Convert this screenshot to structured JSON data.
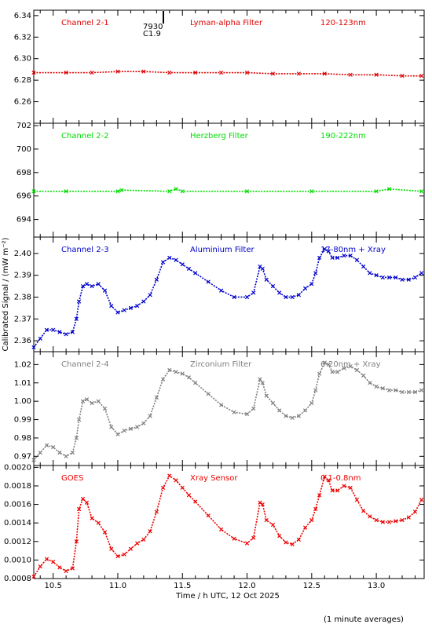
{
  "footer": {
    "xlabel": "Time / h UTC, 12 Oct 2025",
    "ylabel": "Calibrated Signal / (mW m⁻²)",
    "note": "(1 minute averages)"
  },
  "flare_marker": {
    "id": "7930",
    "class": "C1.9",
    "time": 11.36
  },
  "colors": {
    "red": "#dd0000",
    "green": "#00dd00",
    "blue": "#0000cc",
    "gray": "#808080",
    "goes_red": "#ee0000"
  },
  "chart_data": [
    {
      "type": "scatter",
      "panel": "channel-2-1",
      "labels": [
        "Channel 2-1",
        "Lyman-alpha Filter",
        "120-123nm"
      ],
      "color": "#dd0000",
      "ylim": [
        6.24,
        6.345
      ],
      "yticks": [
        6.26,
        6.28,
        6.3,
        6.32,
        6.34
      ],
      "ytick_labels": [
        "6.26",
        "6.28",
        "6.30",
        "6.32",
        "6.34"
      ],
      "x": [
        10.35,
        10.6,
        10.8,
        11.0,
        11.2,
        11.4,
        11.6,
        11.8,
        12.0,
        12.2,
        12.4,
        12.6,
        12.8,
        13.0,
        13.2,
        13.35
      ],
      "y": [
        6.287,
        6.287,
        6.287,
        6.288,
        6.288,
        6.287,
        6.287,
        6.287,
        6.287,
        6.286,
        6.286,
        6.286,
        6.285,
        6.285,
        6.284,
        6.284
      ]
    },
    {
      "type": "scatter",
      "panel": "channel-2-2",
      "labels": [
        "Channel 2-2",
        "Herzberg Filter",
        "190-222nm"
      ],
      "color": "#00dd00",
      "ylim": [
        692.5,
        702.2
      ],
      "yticks": [
        694,
        696,
        698,
        700,
        702
      ],
      "ytick_labels": [
        "694",
        "696",
        "698",
        "700",
        "702"
      ],
      "x": [
        10.35,
        10.6,
        11.0,
        11.03,
        11.4,
        11.45,
        11.5,
        12.0,
        12.5,
        13.0,
        13.1,
        13.35
      ],
      "y": [
        696.4,
        696.4,
        696.4,
        696.5,
        696.4,
        696.6,
        696.4,
        696.4,
        696.4,
        696.4,
        696.6,
        696.4
      ]
    },
    {
      "type": "scatter",
      "panel": "channel-2-3",
      "labels": [
        "Channel 2-3",
        "Aluminium Filter",
        "17-80nm + Xray"
      ],
      "color": "#0000cc",
      "ylim": [
        2.355,
        2.4075
      ],
      "yticks": [
        2.36,
        2.37,
        2.38,
        2.39,
        2.4
      ],
      "ytick_labels": [
        "2.36",
        "2.37",
        "2.38",
        "2.39",
        "2.40"
      ],
      "x": [
        10.35,
        10.4,
        10.45,
        10.5,
        10.55,
        10.6,
        10.65,
        10.68,
        10.7,
        10.73,
        10.76,
        10.8,
        10.85,
        10.9,
        10.95,
        11.0,
        11.05,
        11.1,
        11.15,
        11.2,
        11.25,
        11.3,
        11.35,
        11.4,
        11.45,
        11.5,
        11.55,
        11.6,
        11.7,
        11.8,
        11.9,
        12.0,
        12.05,
        12.1,
        12.12,
        12.15,
        12.2,
        12.25,
        12.3,
        12.35,
        12.4,
        12.45,
        12.5,
        12.53,
        12.56,
        12.6,
        12.63,
        12.66,
        12.7,
        12.75,
        12.8,
        12.85,
        12.9,
        12.95,
        13.0,
        13.05,
        13.1,
        13.15,
        13.2,
        13.25,
        13.3,
        13.35
      ],
      "y": [
        2.357,
        2.361,
        2.365,
        2.365,
        2.364,
        2.363,
        2.364,
        2.37,
        2.378,
        2.385,
        2.386,
        2.385,
        2.386,
        2.383,
        2.376,
        2.373,
        2.374,
        2.375,
        2.376,
        2.378,
        2.381,
        2.388,
        2.396,
        2.398,
        2.397,
        2.395,
        2.393,
        2.391,
        2.387,
        2.383,
        2.38,
        2.38,
        2.382,
        2.394,
        2.393,
        2.388,
        2.385,
        2.382,
        2.38,
        2.38,
        2.381,
        2.384,
        2.386,
        2.391,
        2.398,
        2.402,
        2.401,
        2.398,
        2.398,
        2.399,
        2.399,
        2.397,
        2.394,
        2.391,
        2.39,
        2.389,
        2.389,
        2.389,
        2.388,
        2.388,
        2.389,
        2.391
      ]
    },
    {
      "type": "scatter",
      "panel": "channel-2-4",
      "labels": [
        "Channel 2-4",
        "Zirconium Filter",
        "6-20nm + Xray"
      ],
      "color": "#808080",
      "ylim": [
        0.965,
        1.027
      ],
      "yticks": [
        0.97,
        0.98,
        0.99,
        1.0,
        1.01,
        1.02
      ],
      "ytick_labels": [
        "0.97",
        "0.98",
        "0.99",
        "1.00",
        "1.01",
        "1.02"
      ],
      "x": [
        10.35,
        10.4,
        10.45,
        10.5,
        10.55,
        10.6,
        10.65,
        10.68,
        10.7,
        10.73,
        10.76,
        10.8,
        10.85,
        10.9,
        10.95,
        11.0,
        11.05,
        11.1,
        11.15,
        11.2,
        11.25,
        11.3,
        11.35,
        11.4,
        11.45,
        11.5,
        11.55,
        11.6,
        11.7,
        11.8,
        11.9,
        12.0,
        12.05,
        12.1,
        12.12,
        12.15,
        12.2,
        12.25,
        12.3,
        12.35,
        12.4,
        12.45,
        12.5,
        12.53,
        12.56,
        12.6,
        12.63,
        12.66,
        12.7,
        12.75,
        12.8,
        12.85,
        12.9,
        12.95,
        13.0,
        13.05,
        13.1,
        13.15,
        13.2,
        13.25,
        13.3,
        13.35
      ],
      "y": [
        0.968,
        0.972,
        0.976,
        0.975,
        0.972,
        0.97,
        0.972,
        0.98,
        0.99,
        1.0,
        1.001,
        0.999,
        1.0,
        0.996,
        0.986,
        0.982,
        0.984,
        0.985,
        0.986,
        0.988,
        0.992,
        1.002,
        1.012,
        1.017,
        1.016,
        1.015,
        1.013,
        1.01,
        1.004,
        0.998,
        0.994,
        0.993,
        0.996,
        1.012,
        1.01,
        1.003,
        0.999,
        0.995,
        0.992,
        0.991,
        0.992,
        0.995,
        0.999,
        1.006,
        1.015,
        1.021,
        1.02,
        1.016,
        1.016,
        1.018,
        1.019,
        1.017,
        1.014,
        1.01,
        1.008,
        1.007,
        1.006,
        1.006,
        1.005,
        1.005,
        1.005,
        1.006
      ]
    },
    {
      "type": "scatter",
      "panel": "goes",
      "labels": [
        "GOES",
        "Xray Sensor",
        "0.1-0.8nm"
      ],
      "color": "#ee0000",
      "ylim": [
        0.0008,
        0.00202
      ],
      "yticks": [
        0.0008,
        0.001,
        0.0012,
        0.0014,
        0.0016,
        0.0018,
        0.002
      ],
      "ytick_labels": [
        "0.0008",
        "0.0010",
        "0.0012",
        "0.0014",
        "0.0016",
        "0.0018",
        "0.0020"
      ],
      "x": [
        10.35,
        10.4,
        10.45,
        10.5,
        10.55,
        10.6,
        10.65,
        10.68,
        10.7,
        10.73,
        10.76,
        10.8,
        10.85,
        10.9,
        10.95,
        11.0,
        11.05,
        11.1,
        11.15,
        11.2,
        11.25,
        11.3,
        11.35,
        11.4,
        11.45,
        11.5,
        11.55,
        11.6,
        11.7,
        11.8,
        11.9,
        12.0,
        12.05,
        12.1,
        12.12,
        12.15,
        12.2,
        12.25,
        12.3,
        12.35,
        12.4,
        12.45,
        12.5,
        12.53,
        12.56,
        12.6,
        12.63,
        12.66,
        12.7,
        12.75,
        12.8,
        12.85,
        12.9,
        12.95,
        13.0,
        13.05,
        13.1,
        13.15,
        13.2,
        13.25,
        13.3,
        13.35
      ],
      "y": [
        0.00082,
        0.00093,
        0.00101,
        0.00098,
        0.00092,
        0.00088,
        0.00091,
        0.0012,
        0.00155,
        0.00166,
        0.00162,
        0.00145,
        0.0014,
        0.0013,
        0.00112,
        0.00104,
        0.00106,
        0.00112,
        0.00118,
        0.00122,
        0.00131,
        0.00152,
        0.00178,
        0.00191,
        0.00186,
        0.00178,
        0.0017,
        0.00163,
        0.00148,
        0.00133,
        0.00123,
        0.00118,
        0.00124,
        0.00162,
        0.0016,
        0.00143,
        0.00138,
        0.00126,
        0.00119,
        0.00117,
        0.00122,
        0.00135,
        0.00143,
        0.00155,
        0.0017,
        0.0019,
        0.00186,
        0.00175,
        0.00175,
        0.0018,
        0.00178,
        0.00165,
        0.00153,
        0.00147,
        0.00143,
        0.00141,
        0.00141,
        0.00142,
        0.00143,
        0.00146,
        0.00152,
        0.00165
      ]
    }
  ],
  "xaxis": {
    "xlim": [
      10.35,
      13.37
    ],
    "ticks": [
      10.5,
      11.0,
      11.5,
      12.0,
      12.5,
      13.0
    ],
    "tick_labels": [
      "10.5",
      "11.0",
      "11.5",
      "12.0",
      "12.5",
      "13.0"
    ]
  }
}
